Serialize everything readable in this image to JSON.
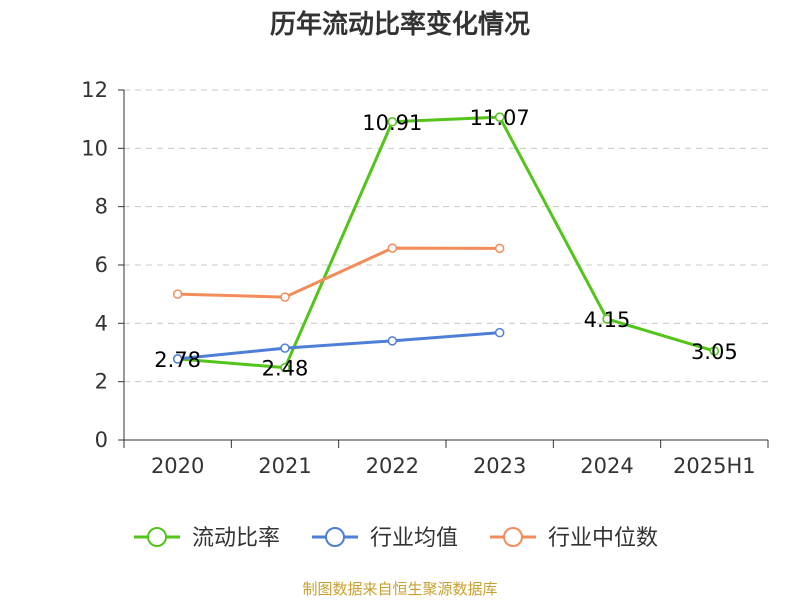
{
  "chart_data": {
    "type": "line",
    "title": "历年流动比率变化情况",
    "categories": [
      "2020",
      "2021",
      "2022",
      "2023",
      "2024",
      "2025H1"
    ],
    "ylim": [
      0,
      12
    ],
    "yticks": [
      "0",
      "2",
      "4",
      "6",
      "8",
      "10",
      "12"
    ],
    "grid": true,
    "legend_position": "bottom",
    "series": [
      {
        "name": "流动比率",
        "color": "#52c41a",
        "values": [
          2.78,
          2.48,
          10.91,
          11.07,
          4.15,
          3.05
        ],
        "labels": [
          "2.78",
          "2.48",
          "10.91",
          "11.07",
          "4.15",
          "3.05"
        ]
      },
      {
        "name": "行业均值",
        "color": "#4e7fd6",
        "values": [
          2.78,
          3.15,
          3.4,
          3.68,
          null,
          null
        ]
      },
      {
        "name": "行业中位数",
        "color": "#f28c5a",
        "values": [
          5.0,
          4.9,
          6.58,
          6.57,
          null,
          null
        ]
      }
    ],
    "source": "制图数据来自恒生聚源数据库"
  }
}
